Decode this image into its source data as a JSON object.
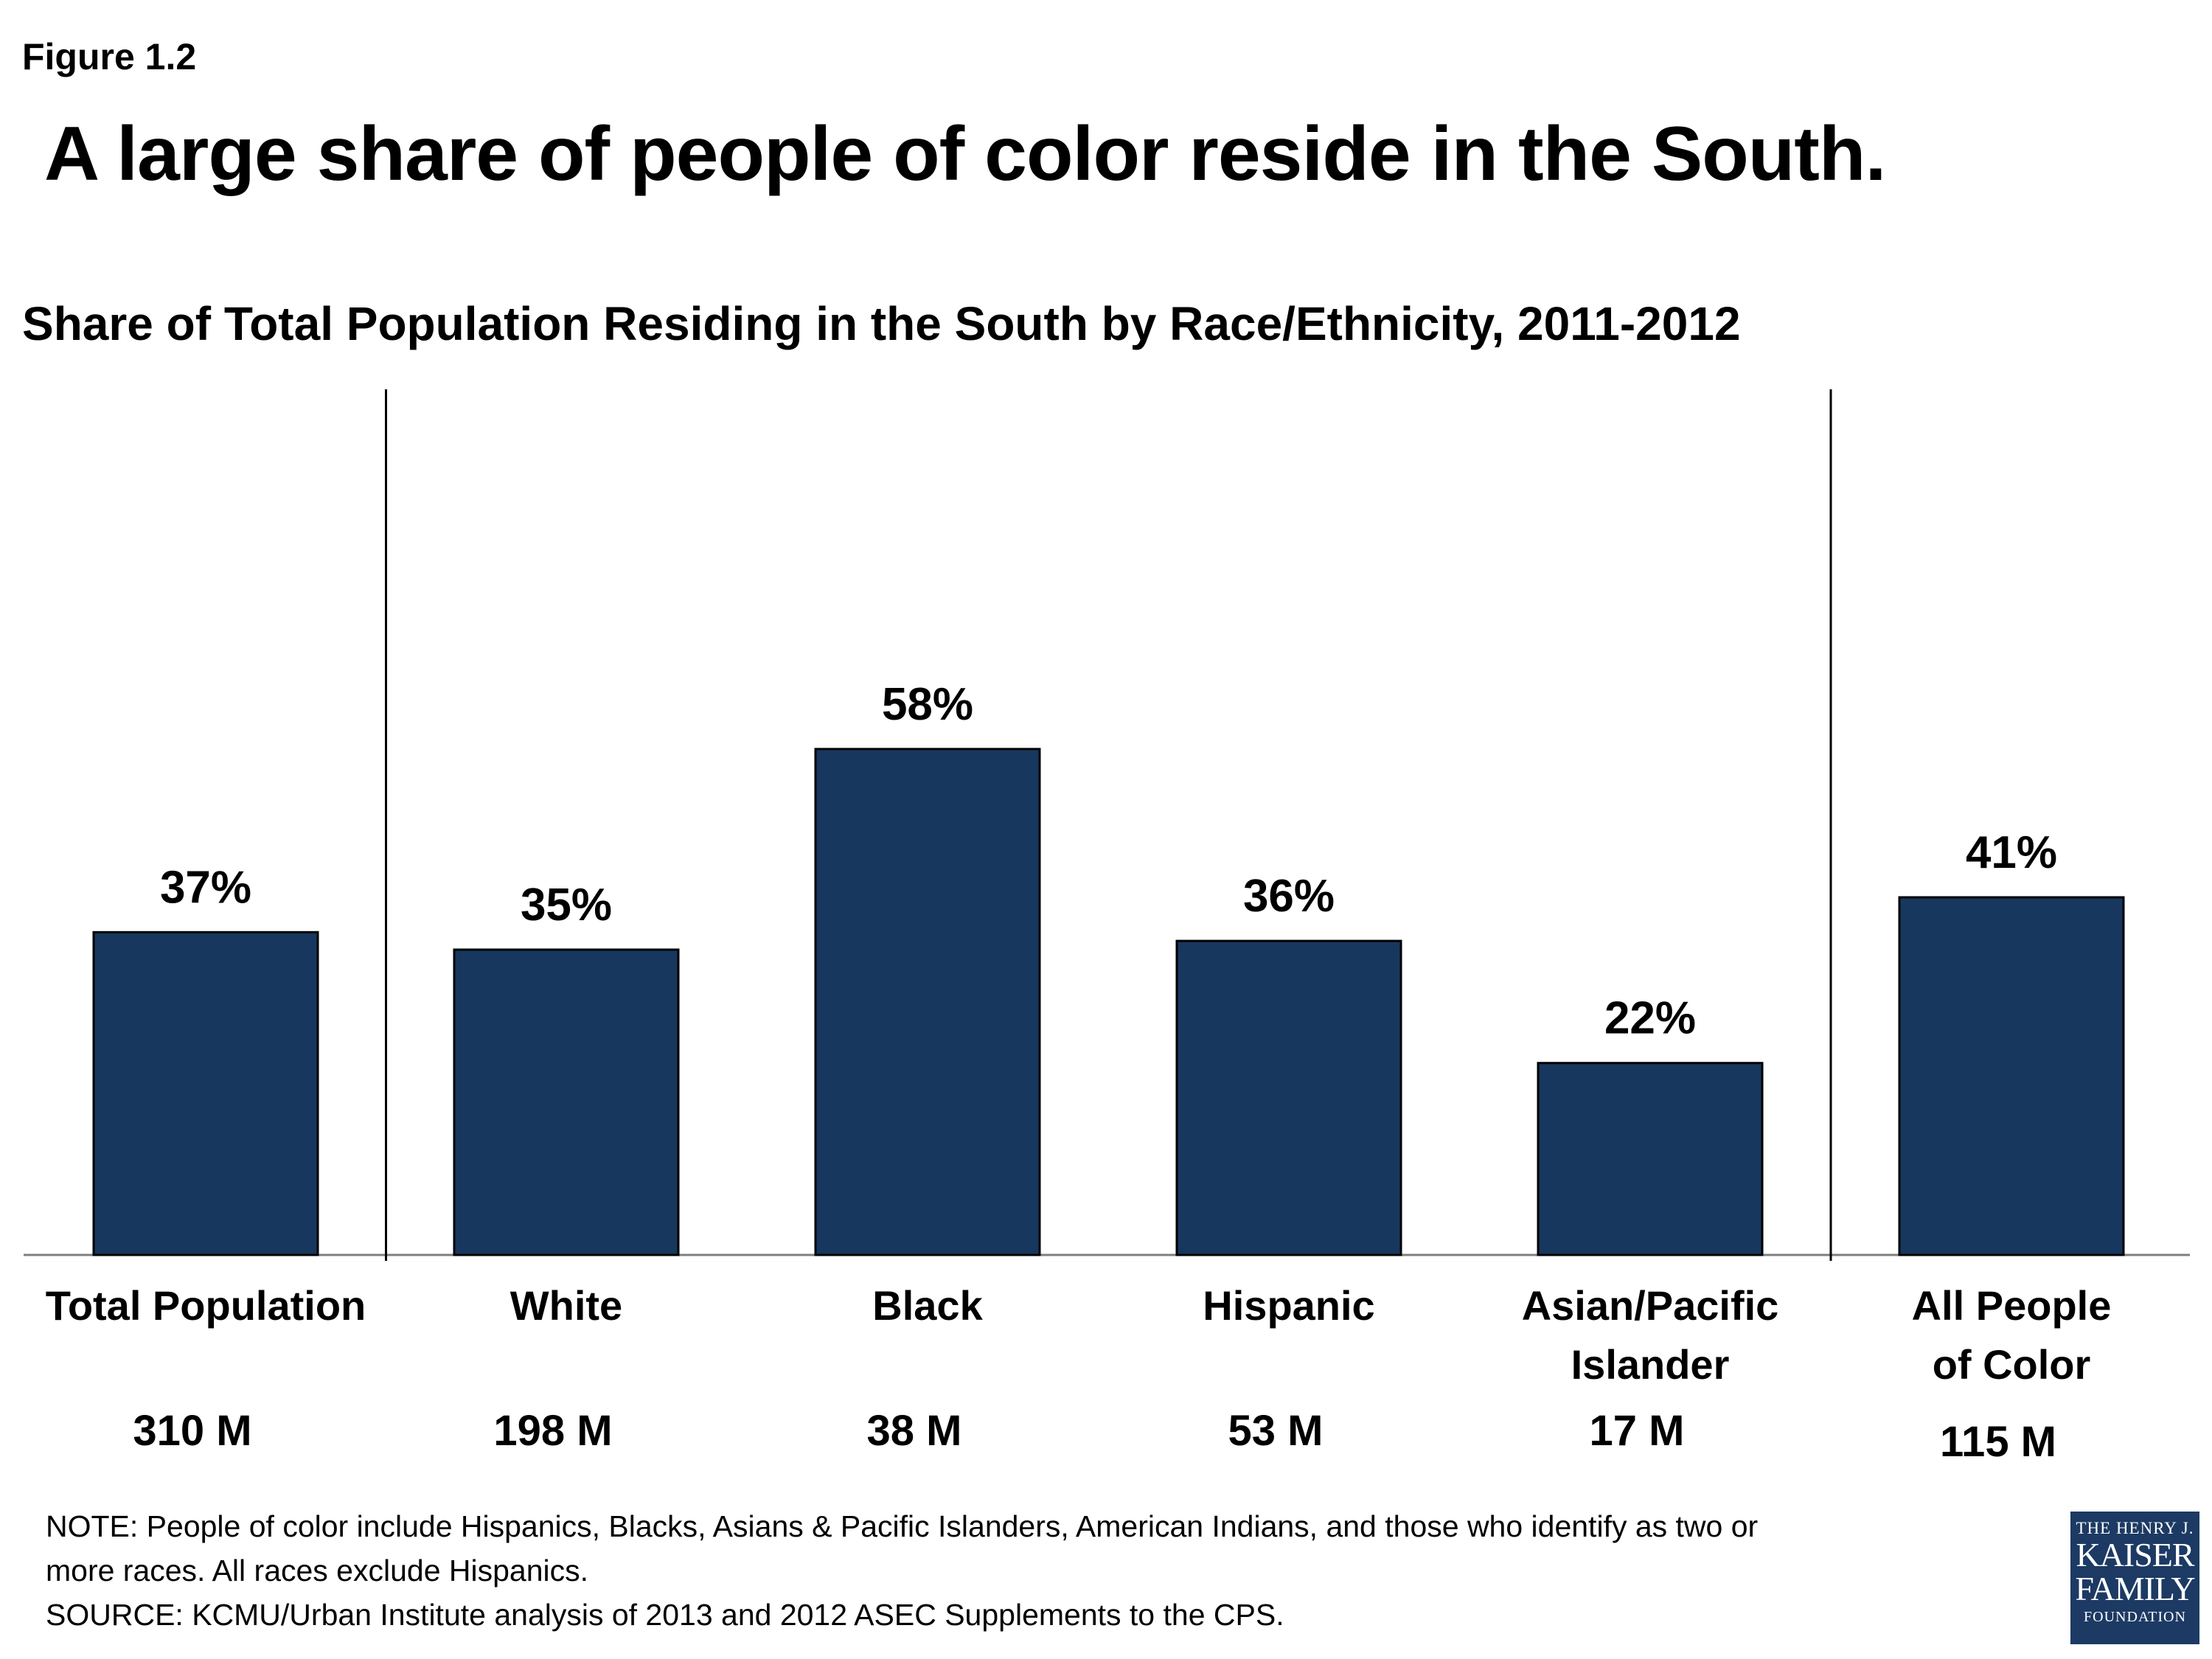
{
  "figure_label": "Figure 1.2",
  "headline": "A large share of people of color reside in the South.",
  "chart_data": {
    "type": "bar",
    "title": "Share of Total Population Residing in the South by Race/Ethnicity, 2011-2012",
    "categories": [
      "Total Population",
      "White",
      "Black",
      "Hispanic",
      "Asian/Pacific Islander",
      "All People of Color"
    ],
    "category_lines": [
      [
        "Total Population"
      ],
      [
        "White"
      ],
      [
        "Black"
      ],
      [
        "Hispanic"
      ],
      [
        "Asian/Pacific",
        "Islander"
      ],
      [
        "All People",
        "of Color"
      ]
    ],
    "values": [
      37,
      35,
      58,
      36,
      22,
      41
    ],
    "value_labels": [
      "37%",
      "35%",
      "58%",
      "36%",
      "22%",
      "41%"
    ],
    "population_labels": [
      "310 M",
      "198 M",
      "38 M",
      "53 M",
      "17 M",
      "115 M"
    ],
    "unit": "%",
    "ylim": [
      0,
      100
    ],
    "group_dividers_after": [
      0,
      4
    ],
    "grid": false,
    "legend": "none",
    "bar_color": "#17375e"
  },
  "notes": {
    "note_line1": "NOTE: People of color include Hispanics, Blacks, Asians & Pacific Islanders, American Indians, and those  who identify as two or",
    "note_line2": "more races. All races exclude Hispanics.",
    "source": "SOURCE: KCMU/Urban Institute analysis of 2013 and 2012 ASEC Supplements to the CPS."
  },
  "logo": {
    "line1": "THE HENRY J.",
    "line2": "KAISER",
    "line3": "FAMILY",
    "line4": "FOUNDATION",
    "color": "#1c3a63"
  }
}
